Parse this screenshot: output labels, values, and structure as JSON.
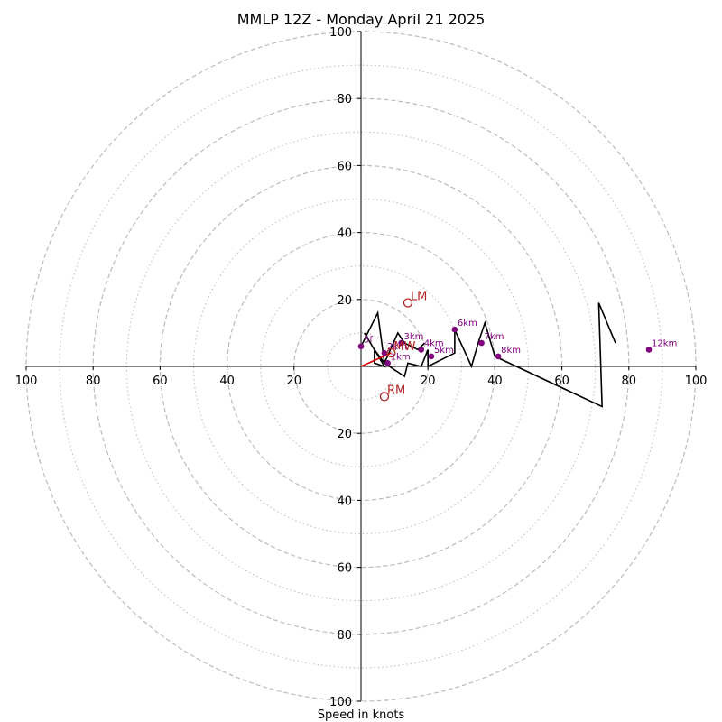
{
  "colors": {
    "hodograph": "#000000",
    "heights": "#800080",
    "motion": "#b22222",
    "shear": "#dd0000",
    "grid": "#bbbbbb",
    "axis": "#000000"
  },
  "chart_data": {
    "type": "hodograph",
    "title": "MMLP 12Z - Monday April 21 2025",
    "xlabel": "Speed in knots",
    "xlim": [
      -100,
      100
    ],
    "ylim": [
      -100,
      100
    ],
    "major_rings": [
      20,
      40,
      60,
      80,
      100
    ],
    "minor_rings": [
      10,
      30,
      50,
      70,
      90
    ],
    "tick_labels": [
      "100",
      "80",
      "60",
      "40",
      "20",
      "20",
      "40",
      "60",
      "80",
      "100"
    ],
    "trace": [
      [
        1,
        10
      ],
      [
        7,
        0
      ],
      [
        4,
        1
      ],
      [
        4,
        5
      ],
      [
        7,
        1
      ],
      [
        13,
        -3
      ],
      [
        14,
        1
      ],
      [
        18,
        0
      ],
      [
        20,
        5
      ],
      [
        20,
        0
      ],
      [
        28,
        4
      ],
      [
        28,
        11
      ],
      [
        33,
        0
      ],
      [
        35,
        7
      ],
      [
        37,
        13
      ],
      [
        40,
        3
      ],
      [
        72,
        -12
      ],
      [
        71,
        19
      ],
      [
        76,
        7
      ]
    ],
    "hodo_points": [
      [
        0,
        6
      ],
      [
        5,
        16
      ],
      [
        7,
        1
      ],
      [
        11,
        10
      ],
      [
        13,
        7
      ],
      [
        17,
        5
      ],
      [
        19,
        7
      ]
    ],
    "height_labels": [
      {
        "label": "1km",
        "x": 8,
        "y": 1
      },
      {
        "label": "2km",
        "x": 7,
        "y": 4
      },
      {
        "label": "3km",
        "x": 12,
        "y": 7
      },
      {
        "label": "4km",
        "x": 18,
        "y": 5
      },
      {
        "label": "5km",
        "x": 21,
        "y": 3
      },
      {
        "label": "6km",
        "x": 28,
        "y": 11
      },
      {
        "label": "7km",
        "x": 36,
        "y": 7
      },
      {
        "label": "8km",
        "x": 41,
        "y": 3
      },
      {
        "label": "12km",
        "x": 86,
        "y": 5
      },
      {
        "label": "5f",
        "x": 0,
        "y": 6
      }
    ],
    "mean_wind": {
      "label": "MW",
      "x": 9,
      "y": 4
    },
    "left_mover": {
      "label": "LM",
      "x": 14,
      "y": 19
    },
    "right_mover": {
      "label": "RM",
      "x": 7,
      "y": -9
    },
    "shear_line": [
      [
        0,
        0
      ],
      [
        9,
        4
      ]
    ]
  }
}
